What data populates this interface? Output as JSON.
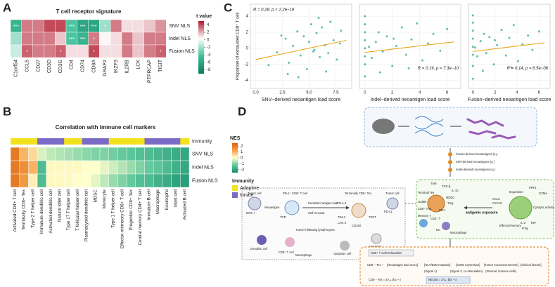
{
  "panel_labels": [
    "A",
    "B",
    "C",
    "D"
  ],
  "chart_data": [
    {
      "type": "heatmap",
      "title": "T cell receptor signature",
      "rows": [
        "SNV NLS",
        "Indel NLS",
        "Fusion NLS"
      ],
      "columns": [
        "C1orf54",
        "CCL5",
        "CD27",
        "CD3D",
        "CD3G",
        "CD4",
        "CD74",
        "CD8A",
        "GRAP2",
        "IKZF3",
        "IL2RB",
        "LCK",
        "PTPRCAP",
        "TIGIT"
      ],
      "values": [
        [
          -5,
          3,
          3,
          4,
          4,
          -4,
          -6,
          -6,
          -2,
          3,
          1,
          1,
          1.5,
          2.5
        ],
        [
          -2,
          3,
          3,
          3,
          1.5,
          -4,
          -5,
          3,
          0.5,
          1,
          3,
          1.5,
          3,
          3
        ],
        [
          -1,
          3.5,
          3,
          3,
          3.5,
          1,
          1,
          4,
          1,
          1,
          3,
          1.5,
          3,
          3.5
        ]
      ],
      "annotations": [
        [
          "***",
          null,
          null,
          null,
          null,
          "***",
          "***",
          "***",
          "*",
          null,
          null,
          null,
          null,
          null
        ],
        [
          null,
          null,
          null,
          null,
          null,
          "***",
          "***",
          "*",
          null,
          null,
          null,
          null,
          null,
          null
        ],
        [
          null,
          "*",
          null,
          null,
          "*",
          null,
          null,
          "*",
          null,
          null,
          null,
          "*",
          null,
          "*"
        ]
      ],
      "colorbar": {
        "title": "t value",
        "lim": [
          -9,
          5
        ],
        "ticks": [
          4,
          2,
          0,
          -2,
          -4,
          -6,
          -8
        ],
        "colors": [
          "#0b7a5c",
          "#3fbf98",
          "#ffffff",
          "#b2182b"
        ]
      }
    },
    {
      "type": "heatmap",
      "title": "Correlation with immune cell markers",
      "rows": [
        "SNV NLS",
        "Indel NLS",
        "Fusion NLS"
      ],
      "columns": [
        "Activated CD4+ T cell",
        "Terminally CD8+ Tex",
        "Type 2 T helper cell",
        "Immature dendritic cell",
        "Activated dendritic cell",
        "Natural killer cell",
        "Type 17 T helper cell",
        "T follicular helper cell",
        "Plasmacytoid dendritic cell",
        "MDSC",
        "Monocyte",
        "Type 1 T helper cell",
        "Effector memeory CD8+ T cell",
        "Progenitor CD8+ Tex",
        "Central memory CD4+ T cell",
        "Immature B cell",
        "Macrophage",
        "Eosinophil",
        "Mast cell",
        "Activated B cell"
      ],
      "values": [
        [
          2.0,
          1.0,
          0.5,
          -0.3,
          -0.5,
          -0.6,
          -0.7,
          -0.8,
          -0.9,
          -1.0,
          -1.0,
          -1.1,
          -1.2,
          -1.3,
          -1.4,
          -1.5,
          -1.6,
          -1.7,
          -1.8,
          -1.9
        ],
        [
          2.0,
          1.6,
          1.0,
          -1.5,
          0.1,
          0.1,
          0.1,
          0.1,
          0.0,
          0.0,
          -0.2,
          -0.4,
          -0.6,
          -0.8,
          -1.0,
          -1.2,
          -1.3,
          -1.5,
          -1.7,
          -1.9
        ],
        [
          2.0,
          1.4,
          0.2,
          -1.5,
          0.1,
          0.1,
          0.1,
          0.0,
          0.0,
          -0.2,
          -0.5,
          -0.8,
          -1.0,
          -1.2,
          -1.4,
          -1.5,
          -1.7,
          -1.8,
          -2.0,
          -2.1
        ]
      ],
      "column_groups": {
        "title": "Immunity",
        "values": [
          "Adaptive",
          "Adaptive",
          "Adaptive",
          "Innate",
          "Innate",
          "Innate",
          "Adaptive",
          "Adaptive",
          "Innate",
          "Innate",
          "Innate",
          "Adaptive",
          "Adaptive",
          "Adaptive",
          "Adaptive",
          "Innate",
          "Innate",
          "Innate",
          "Innate",
          "Adaptive"
        ],
        "legend": [
          {
            "name": "Adaptive",
            "color": "#f2e21c"
          },
          {
            "name": "Innate",
            "color": "#7a6bc7"
          }
        ]
      },
      "colorbar": {
        "title": "NES",
        "lim": [
          -2.5,
          2.5
        ],
        "ticks": [
          2,
          1,
          0,
          -1,
          -2
        ],
        "colors": [
          "#0f8a6a",
          "#5fc79c",
          "#ffffcc",
          "#f5a24a",
          "#d95f0e"
        ]
      }
    },
    {
      "type": "scatter",
      "ylabel": "Proportion of exhausted CD8⁺ T cell",
      "xlabel": "SNV−derived neoantigen load score",
      "annotation": "R = 0.28, p < 2.2e−16",
      "color": "#1fa187",
      "fit_color": "#e69f00",
      "xlim": [
        -0.5,
        9
      ],
      "ylim": [
        -5,
        5.5
      ],
      "xticks": [
        {
          "value": 0,
          "label": "0.0"
        },
        {
          "value": 2.5,
          "label": "2.5"
        },
        {
          "value": 5,
          "label": "5.0"
        },
        {
          "value": 7.5,
          "label": "7.5"
        }
      ],
      "yticks": [
        -4,
        -2,
        0,
        2,
        4
      ],
      "x": [
        1.2,
        2.0,
        2.8,
        3.1,
        3.5,
        3.9,
        4.2,
        4.5,
        4.8,
        5.0,
        5.2,
        5.5,
        5.7,
        6.0,
        6.2,
        6.5,
        6.8,
        7.0,
        7.3,
        7.6,
        8.0,
        4.0,
        5.9,
        6.6,
        3.0,
        7.9,
        5.4,
        2.4
      ],
      "y": [
        -2.1,
        -0.5,
        1.2,
        -1.8,
        0.3,
        2.1,
        -0.9,
        1.5,
        -2.6,
        0.8,
        3.0,
        -0.2,
        1.9,
        -1.1,
        2.6,
        0.4,
        -0.6,
        3.3,
        1.0,
        -1.4,
        2.2,
        -3.6,
        3.8,
        -2.9,
        -3.2,
        0.6,
        -0.4,
        1.6
      ],
      "fit": {
        "x": [
          0,
          8.5
        ],
        "y": [
          -1.4,
          1.0
        ]
      }
    },
    {
      "type": "scatter",
      "xlabel": "Indel−derived neoantigen load score",
      "annotation": "R = 0.19, p = 7.3e−10",
      "color": "#1fa187",
      "fit_color": "#e69f00",
      "xlim": [
        -0.4,
        7
      ],
      "ylim": [
        -5,
        5.5
      ],
      "xticks": [
        0,
        2,
        4,
        6
      ],
      "yticks": [
        -4,
        -2,
        0,
        2,
        4
      ],
      "x": [
        0,
        0,
        0,
        0,
        0,
        0,
        0,
        0,
        0.5,
        0.8,
        1.0,
        1.3,
        1.6,
        2.0,
        2.3,
        2.7,
        3.0,
        3.4,
        3.8,
        4.2,
        4.6,
        5.0,
        5.5,
        6.0,
        1.1,
        2.1,
        3.2,
        0.3
      ],
      "y": [
        -3.5,
        -2,
        -1,
        0,
        1,
        2,
        3,
        4,
        -1.2,
        0.8,
        2.0,
        -0.4,
        1.5,
        -2.2,
        0.3,
        2.6,
        -0.8,
        1.1,
        3.1,
        -1.5,
        0.6,
        1.8,
        -0.3,
        2.4,
        -3.0,
        1.2,
        -2.5,
        0.2
      ],
      "fit": {
        "x": [
          0,
          6.5
        ],
        "y": [
          -0.5,
          0.8
        ]
      }
    },
    {
      "type": "scatter",
      "xlabel": "Fusion−derived neoantigen load score",
      "annotation": "R = 0.14, p = 6.5e−06",
      "color": "#1fa187",
      "fit_color": "#e69f00",
      "xlim": [
        -0.4,
        7
      ],
      "ylim": [
        -5,
        5.5
      ],
      "xticks": [
        0,
        2,
        4,
        6
      ],
      "yticks": [
        -4,
        -2,
        0,
        2,
        4
      ],
      "x": [
        0,
        0,
        0,
        0,
        0,
        0,
        0,
        0,
        0.4,
        0.7,
        1.0,
        1.2,
        1.5,
        1.9,
        2.2,
        2.6,
        3.0,
        3.3,
        3.7,
        4.1,
        4.5,
        5.0,
        5.4,
        6.0,
        0.9,
        2.0,
        3.5,
        0.2
      ],
      "y": [
        -3.8,
        -2.2,
        -0.8,
        0.2,
        1.2,
        2.2,
        3.2,
        4.1,
        -1.0,
        0.9,
        1.8,
        -0.6,
        1.4,
        -2.0,
        0.4,
        2.3,
        -0.9,
        1.3,
        2.9,
        -1.6,
        0.5,
        1.6,
        -0.2,
        2.1,
        -2.8,
        1.0,
        -2.4,
        0.1
      ],
      "fit": {
        "x": [
          0,
          6.5
        ],
        "y": [
          -0.4,
          0.7
        ]
      }
    }
  ],
  "diagram": {
    "neoantigens": [
      "Fusion-derived neoantigens (x₃)",
      "SNV-derived neoantigens (x₁)",
      "Indel-derived neoantigens (x₂)"
    ],
    "mechanism": {
      "tumor_cell": "Tumor cell",
      "pd1_cell": "PD-1⁺ CD8⁺ T cell",
      "persistent": "Persistent antigen load",
      "terminal": "Terminally CD8⁺ Tex",
      "tumor_cell2": "Tumor cell",
      "neoantigen": "Neoantigen",
      "tcr": "TCR",
      "mhc": "MHC I",
      "self_renewal": "Self-renewal",
      "til": "Tumor-infiltrating lymphocytes",
      "cd8": "CD8⁺ T cell",
      "dc": "Dendritic cell",
      "macrophage": "Macrophage",
      "apoptotic": "Apoptotic cell",
      "apoptosis": "Apoptosis",
      "ctla4": "CTLA-4",
      "tim3": "TIM-3",
      "lag3": "LAG-3",
      "cd160": "CD160",
      "tigit": "TIGIT",
      "pdl1": "PD-L1"
    },
    "tme": {
      "terminal_tex": "Terminal Tex",
      "tam": "TAM",
      "tgfb": "TGF-β",
      "il10": "IL-10",
      "mdsc": "MDSC",
      "treg": "Treg",
      "gzmb": "GZMB",
      "pd1": "PD-1",
      "tcm": "CD8⁺ Tcm",
      "memory": "Memory T",
      "cd4": "CD4⁺ T",
      "dc": "DC",
      "macrophage": "Macrophage",
      "exposure": "antigenic exposure",
      "expansion": "Expansion",
      "prf1": "PRF1",
      "gzma": "GZMA",
      "ccl5": "CCL5",
      "cxcl9": "CXCL9",
      "effector": "Effector/memory",
      "il2": "IL-2",
      "tnf": "TNF",
      "ifng": "IFNγ",
      "cytolytic": "Cytolytic activity"
    },
    "model": {
      "title": "CD8⁺ T Cell Exhaustion",
      "lhs": "CD8 − Tex ~",
      "nls": "[Neoantigen load score]",
      "hla": "[HLA/B2M mutation]",
      "cd80": "[CD80 expression]",
      "tme": "[Tumor microenvironment]",
      "clinical": "[Clinical factors]",
      "signal1": "(Signal 1)",
      "signal2": "(Signal 2, co-stimulation)",
      "stromal": "(Stromal, immune cells)",
      "equation": "CD8 − Tex = Σ³ᵢ₌₁ βᵢxᵢ + ε",
      "neo25": "NEO25 = Σ³ᵢ₌₁ β̂ᵢxᵢ + ε"
    }
  }
}
